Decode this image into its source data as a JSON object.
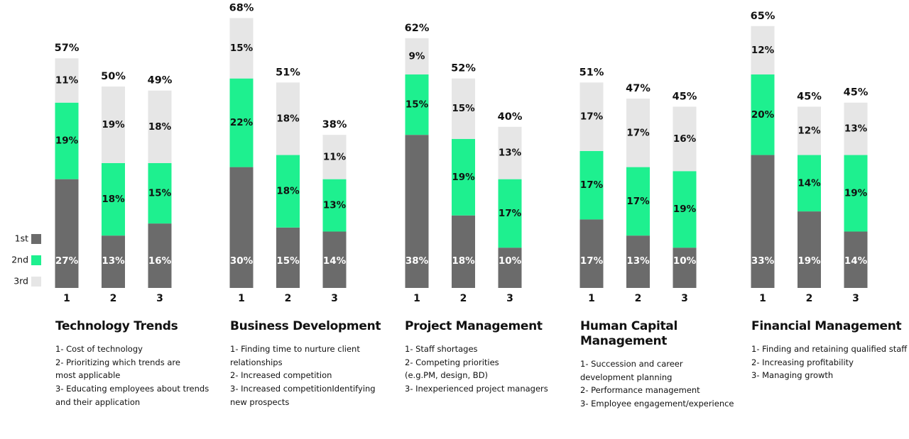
{
  "chart_data": [
    {
      "type": "bar",
      "stacked": true,
      "title": "Technology Trends",
      "categories": [
        "1",
        "2",
        "3"
      ],
      "series": [
        {
          "name": "1st",
          "color": "#6b6b6b",
          "values": [
            27,
            13,
            16
          ],
          "value_labels": [
            "27%",
            "13%",
            "16%"
          ]
        },
        {
          "name": "2nd",
          "color": "#1ef08f",
          "values": [
            19,
            18,
            15
          ],
          "value_labels": [
            "19%",
            "18%",
            "15%"
          ]
        },
        {
          "name": "3rd",
          "color": "#e6e6e6",
          "values": [
            11,
            19,
            18
          ],
          "value_labels": [
            "11%",
            "19%",
            "18%"
          ]
        }
      ],
      "totals": [
        57,
        50,
        49
      ],
      "total_labels": [
        "57%",
        "50%",
        "49%"
      ],
      "description": [
        "1- Cost of technology",
        "2- Prioritizing which trends are",
        "most applicable",
        "3- Educating employees about trends",
        "and their application"
      ]
    },
    {
      "type": "bar",
      "stacked": true,
      "title": "Business Development",
      "categories": [
        "1",
        "2",
        "3"
      ],
      "series": [
        {
          "name": "1st",
          "color": "#6b6b6b",
          "values": [
            30,
            15,
            14
          ],
          "value_labels": [
            "30%",
            "15%",
            "14%"
          ]
        },
        {
          "name": "2nd",
          "color": "#1ef08f",
          "values": [
            22,
            18,
            13
          ],
          "value_labels": [
            "22%",
            "18%",
            "13%"
          ]
        },
        {
          "name": "3rd",
          "color": "#e6e6e6",
          "values": [
            15,
            18,
            11
          ],
          "value_labels": [
            "15%",
            "18%",
            "11%"
          ]
        }
      ],
      "totals": [
        68,
        51,
        38
      ],
      "total_labels": [
        "68%",
        "51%",
        "38%"
      ],
      "description": [
        "1- Finding time to nurture client",
        "relationships",
        "2- Increased competition",
        "3- Increased competitionIdentifying",
        "new prospects"
      ]
    },
    {
      "type": "bar",
      "stacked": true,
      "title": "Project Management",
      "categories": [
        "1",
        "2",
        "3"
      ],
      "series": [
        {
          "name": "1st",
          "color": "#6b6b6b",
          "values": [
            38,
            18,
            10
          ],
          "value_labels": [
            "38%",
            "18%",
            "10%"
          ]
        },
        {
          "name": "2nd",
          "color": "#1ef08f",
          "values": [
            15,
            19,
            17
          ],
          "value_labels": [
            "15%",
            "19%",
            "17%"
          ]
        },
        {
          "name": "3rd",
          "color": "#e6e6e6",
          "values": [
            9,
            15,
            13
          ],
          "value_labels": [
            "9%",
            "15%",
            "13%"
          ]
        }
      ],
      "totals": [
        62,
        52,
        40
      ],
      "total_labels": [
        "62%",
        "52%",
        "40%"
      ],
      "description": [
        "1- Staff shortages",
        "2- Competing priorities",
        "(e.g.PM, design, BD)",
        "3- Inexperienced project managers"
      ]
    },
    {
      "type": "bar",
      "stacked": true,
      "title": "Human Capital Management",
      "categories": [
        "1",
        "2",
        "3"
      ],
      "series": [
        {
          "name": "1st",
          "color": "#6b6b6b",
          "values": [
            17,
            13,
            10
          ],
          "value_labels": [
            "17%",
            "13%",
            "10%"
          ]
        },
        {
          "name": "2nd",
          "color": "#1ef08f",
          "values": [
            17,
            17,
            19
          ],
          "value_labels": [
            "17%",
            "17%",
            "19%"
          ]
        },
        {
          "name": "3rd",
          "color": "#e6e6e6",
          "values": [
            17,
            17,
            16
          ],
          "value_labels": [
            "17%",
            "17%",
            "16%"
          ]
        }
      ],
      "totals": [
        51,
        47,
        45
      ],
      "total_labels": [
        "51%",
        "47%",
        "45%"
      ],
      "description": [
        "1- Succession and career",
        "development planning",
        "2- Performance management",
        "3- Employee engagement/experience"
      ]
    },
    {
      "type": "bar",
      "stacked": true,
      "title": "Financial Management",
      "categories": [
        "1",
        "2",
        "3"
      ],
      "series": [
        {
          "name": "1st",
          "color": "#6b6b6b",
          "values": [
            33,
            19,
            14
          ],
          "value_labels": [
            "33%",
            "19%",
            "14%"
          ]
        },
        {
          "name": "2nd",
          "color": "#1ef08f",
          "values": [
            20,
            14,
            19
          ],
          "value_labels": [
            "20%",
            "14%",
            "19%"
          ]
        },
        {
          "name": "3rd",
          "color": "#e6e6e6",
          "values": [
            12,
            12,
            13
          ],
          "value_labels": [
            "12%",
            "12%",
            "13%"
          ]
        }
      ],
      "totals": [
        65,
        45,
        45
      ],
      "total_labels": [
        "65%",
        "45%",
        "45%"
      ],
      "description": [
        "1- Finding and retaining qualified staff",
        "2- Increasing profitability",
        "3- Managing growth"
      ]
    }
  ]
}
